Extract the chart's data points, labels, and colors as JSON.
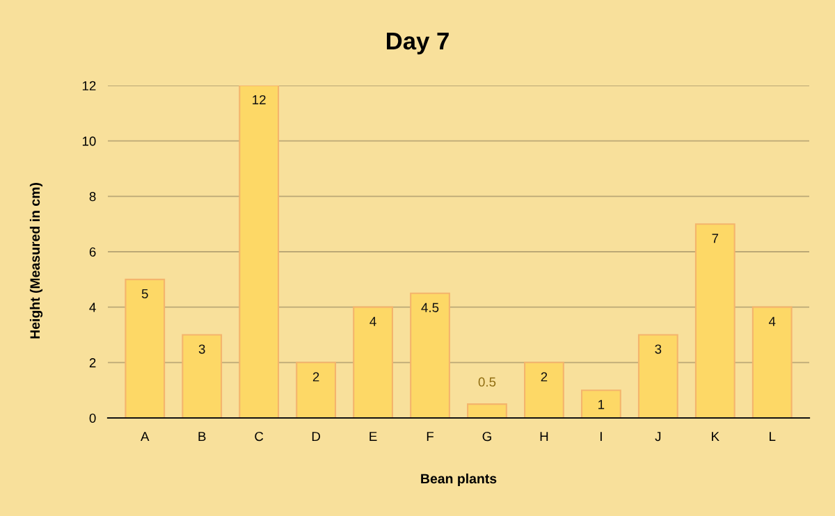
{
  "chart_data": {
    "type": "bar",
    "title": "Day 7",
    "xlabel": "Bean plants",
    "ylabel": "Height (Measured in cm)",
    "categories": [
      "A",
      "B",
      "C",
      "D",
      "E",
      "F",
      "G",
      "H",
      "I",
      "J",
      "K",
      "L"
    ],
    "values": [
      5,
      3,
      12,
      2,
      4,
      4.5,
      0.5,
      2,
      1,
      3,
      7,
      4
    ],
    "color": "#fdd866",
    "ylim": [
      0,
      12
    ],
    "yticks": [
      0,
      2,
      4,
      6,
      8,
      10,
      12
    ],
    "grid": "y",
    "data_labels": true,
    "legend": false
  }
}
